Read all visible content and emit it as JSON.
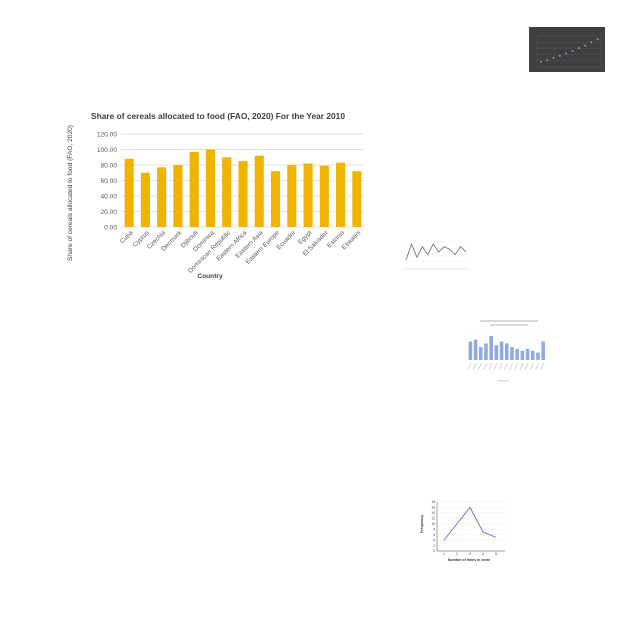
{
  "colors": {
    "main_bar": "#f0b400",
    "main_bar_dark": "#d99e00",
    "grid": "#d9d9d9",
    "axis_text": "#595959",
    "title_text": "#404040",
    "thumb_dark_bg": "#404040",
    "thumb_bar": "#8faadc",
    "thumb_line": "#5b6fc7"
  },
  "chart_data": [
    {
      "type": "bar",
      "title": "Share of cereals allocated to food (FAO, 2020)  For the Year 2010",
      "xlabel": "Country",
      "ylabel": "Share of cereals allocated to food (FAO, 2020)",
      "ylim": [
        0,
        120
      ],
      "yticks": [
        "120.00",
        "100.00",
        "80.00",
        "60.00",
        "40.00",
        "20.00",
        "0.00"
      ],
      "categories": [
        "Cuba",
        "Cyprus",
        "Czechia",
        "Denmark",
        "Djibouti",
        "Dominica",
        "Dominican Republic",
        "Eastern Africa",
        "Eastern Asia",
        "Eastern Europe",
        "Ecuador",
        "Egypt",
        "El Salvador",
        "Estonia",
        "Eswatini"
      ],
      "values": [
        88,
        70,
        77,
        80,
        97,
        100,
        90,
        85,
        92,
        72,
        80,
        82,
        79,
        83,
        72
      ],
      "grid": true,
      "legend": "none"
    },
    {
      "type": "scatter",
      "thumbnail": "top-right",
      "values": [
        0.5,
        0.8,
        1.2,
        1.5,
        1.9,
        2.3,
        2.8,
        3.2,
        3.8,
        4.3
      ]
    },
    {
      "type": "line",
      "thumbnail": "middle-right",
      "values": [
        3,
        9,
        4,
        8,
        5,
        9,
        6,
        8,
        7,
        5,
        8,
        6
      ]
    },
    {
      "type": "bar",
      "thumbnail": "right",
      "values": [
        10,
        11,
        7,
        9,
        13,
        8,
        10,
        9,
        7,
        6,
        5,
        6,
        5,
        4,
        10
      ]
    },
    {
      "type": "line",
      "thumbnail": "bottom-right",
      "ylabel": "Frequency",
      "xlabel": "Number of times in store",
      "categories": [
        "1",
        "2",
        "3",
        "4",
        "5"
      ],
      "values": [
        4,
        10,
        16,
        7,
        5
      ],
      "ylim": [
        0,
        18
      ],
      "yticks": [
        "0",
        "2",
        "4",
        "6",
        "8",
        "10",
        "12",
        "14",
        "16",
        "18"
      ]
    }
  ]
}
